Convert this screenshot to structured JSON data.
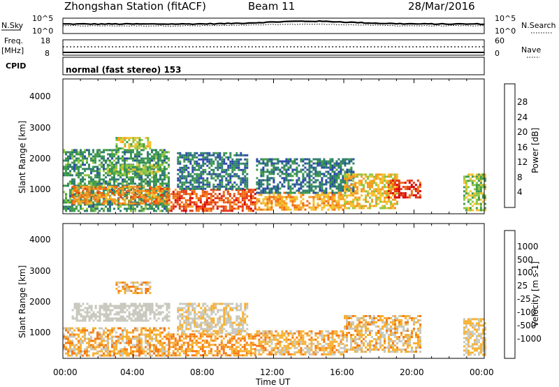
{
  "header": {
    "station": "Zhongshan Station (fitACF)",
    "beam": "Beam 11",
    "date": "28/Mar/2016"
  },
  "strips": {
    "nsky": {
      "label": "N.Sky",
      "left_ticks": [
        "10^5",
        "10^0"
      ],
      "right_ticks": [
        "10^5",
        "10^0"
      ],
      "right_label": "N.Search"
    },
    "freq": {
      "label_line1": "Freq.",
      "label_line2": "[MHz]",
      "left_ticks": [
        "18",
        "8"
      ],
      "right_ticks": [
        "60",
        "0"
      ],
      "right_label": "Nave"
    },
    "cpid": {
      "label": "CPID",
      "text": "normal (fast stereo) 153"
    }
  },
  "xaxis": {
    "label": "Time UT",
    "ticks": [
      "00:00",
      "04:00",
      "08:00",
      "12:00",
      "16:00",
      "20:00",
      "00:00"
    ]
  },
  "yaxis": {
    "label": "Slant Range [km]",
    "ticks": [
      "1000",
      "2000",
      "3000",
      "4000"
    ]
  },
  "colorbars": {
    "power": {
      "label": "Power [dB]",
      "ticks": [
        "4",
        "8",
        "12",
        "16",
        "20",
        "24",
        "28"
      ]
    },
    "velocity": {
      "label": "Velocity [m s-1]",
      "ticks": [
        "-1000",
        "-500",
        "-100",
        "-25",
        "25",
        "100",
        "500",
        "1000"
      ]
    }
  },
  "colors": {
    "power_scale": [
      "#1a1aff",
      "#2a4aa8",
      "#2e7d6e",
      "#3f9b4a",
      "#8ec641",
      "#f2c230",
      "#f59a1e",
      "#ef6a12",
      "#e33512",
      "#d80000"
    ],
    "velocity_scale": [
      "#e00000",
      "#ef3a10",
      "#f57a14",
      "#f7b133",
      "#c8c8be",
      "#c8c8be",
      "#7fc241",
      "#3f8f5a",
      "#2f5fa8",
      "#1a3fc0"
    ]
  },
  "chart_data": [
    {
      "type": "heatmap",
      "title": "Power [dB]",
      "xlabel": "Time UT",
      "ylabel": "Slant Range [km]",
      "xlim": [
        0,
        24
      ],
      "ylim": [
        180,
        4600
      ],
      "clim": [
        0,
        32
      ],
      "series": [
        {
          "name": "patch",
          "x": [
            0.0,
            6.0
          ],
          "y": [
            300,
            2300
          ],
          "value": 10
        },
        {
          "name": "patch",
          "x": [
            0.5,
            6.0
          ],
          "y": [
            500,
            1100
          ],
          "value": 22
        },
        {
          "name": "patch",
          "x": [
            2.5,
            5.5
          ],
          "y": [
            1500,
            1800
          ],
          "value": 14
        },
        {
          "name": "patch",
          "x": [
            3.0,
            5.0
          ],
          "y": [
            2300,
            2700
          ],
          "value": 16
        },
        {
          "name": "patch",
          "x": [
            6.0,
            11.0
          ],
          "y": [
            300,
            1000
          ],
          "value": 26
        },
        {
          "name": "patch",
          "x": [
            6.5,
            10.5
          ],
          "y": [
            1000,
            2200
          ],
          "value": 8
        },
        {
          "name": "patch",
          "x": [
            11.0,
            16.0
          ],
          "y": [
            300,
            900
          ],
          "value": 20
        },
        {
          "name": "patch",
          "x": [
            11.0,
            16.5
          ],
          "y": [
            900,
            2000
          ],
          "value": 8
        },
        {
          "name": "patch",
          "x": [
            16.0,
            19.0
          ],
          "y": [
            400,
            1500
          ],
          "value": 18
        },
        {
          "name": "patch",
          "x": [
            18.5,
            20.3
          ],
          "y": [
            700,
            1300
          ],
          "value": 28
        },
        {
          "name": "patch",
          "x": [
            22.8,
            24.0
          ],
          "y": [
            300,
            1500
          ],
          "value": 14
        }
      ]
    },
    {
      "type": "heatmap",
      "title": "Velocity [m s-1]",
      "xlabel": "Time UT",
      "ylabel": "Slant Range [km]",
      "xlim": [
        0,
        24
      ],
      "ylim": [
        180,
        4600
      ],
      "clim": [
        -1000,
        1000
      ],
      "series": [
        {
          "name": "patch",
          "x": [
            0.0,
            6.0
          ],
          "y": [
            300,
            1200
          ],
          "value": -300
        },
        {
          "name": "patch",
          "x": [
            0.5,
            6.0
          ],
          "y": [
            1400,
            2000
          ],
          "value": 0
        },
        {
          "name": "patch",
          "x": [
            3.0,
            5.0
          ],
          "y": [
            2300,
            2700
          ],
          "value": -300
        },
        {
          "name": "patch",
          "x": [
            6.0,
            11.0
          ],
          "y": [
            300,
            1000
          ],
          "value": -400
        },
        {
          "name": "patch",
          "x": [
            6.5,
            10.5
          ],
          "y": [
            1000,
            2000
          ],
          "value": -150
        },
        {
          "name": "patch",
          "x": [
            11.0,
            16.0
          ],
          "y": [
            300,
            1100
          ],
          "value": -300
        },
        {
          "name": "patch",
          "x": [
            16.0,
            20.3
          ],
          "y": [
            400,
            1600
          ],
          "value": -250
        },
        {
          "name": "patch",
          "x": [
            22.8,
            24.0
          ],
          "y": [
            300,
            1500
          ],
          "value": -200
        }
      ]
    }
  ]
}
